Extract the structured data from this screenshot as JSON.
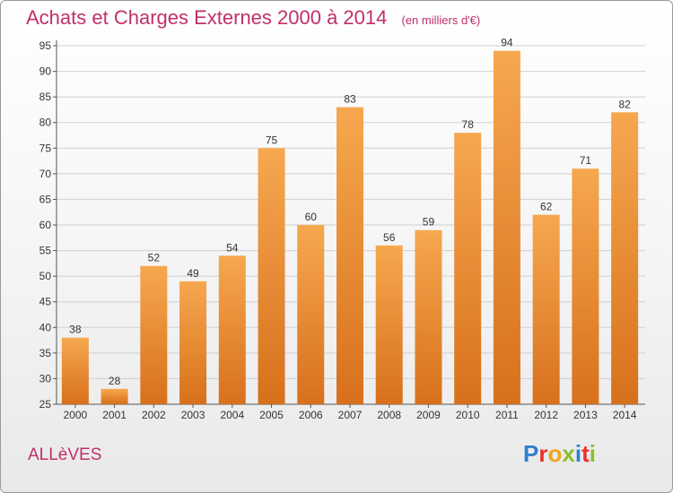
{
  "header": {
    "title": "Achats et Charges Externes 2000 à 2014",
    "unit": "(en milliers d'€)"
  },
  "footer": {
    "commune": "ALLèVES",
    "logo_text": "Proxiti",
    "logo_colors": [
      "#2e7fd0",
      "#e8322e",
      "#f1a51b",
      "#8cbf2a",
      "#2e7fd0",
      "#e8322e",
      "#8cbf2a"
    ]
  },
  "colors": {
    "bar_top": "#f6a84f",
    "bar_bottom": "#d8701c",
    "title": "#c0306a",
    "grid": "#cfcfcf"
  },
  "chart_data": {
    "type": "bar",
    "title": "Achats et Charges Externes 2000 à 2014",
    "xlabel": "",
    "ylabel": "",
    "categories": [
      "2000",
      "2001",
      "2002",
      "2003",
      "2004",
      "2005",
      "2006",
      "2007",
      "2008",
      "2009",
      "2010",
      "2011",
      "2012",
      "2013",
      "2014"
    ],
    "values": [
      38,
      28,
      52,
      49,
      54,
      75,
      60,
      83,
      56,
      59,
      78,
      94,
      62,
      71,
      82
    ],
    "ylim": [
      25,
      95
    ],
    "yticks": [
      "25",
      "30",
      "35",
      "40",
      "45",
      "50",
      "55",
      "60",
      "65",
      "70",
      "75",
      "80",
      "85",
      "90",
      "95"
    ],
    "grid": true,
    "data_labels": true
  }
}
